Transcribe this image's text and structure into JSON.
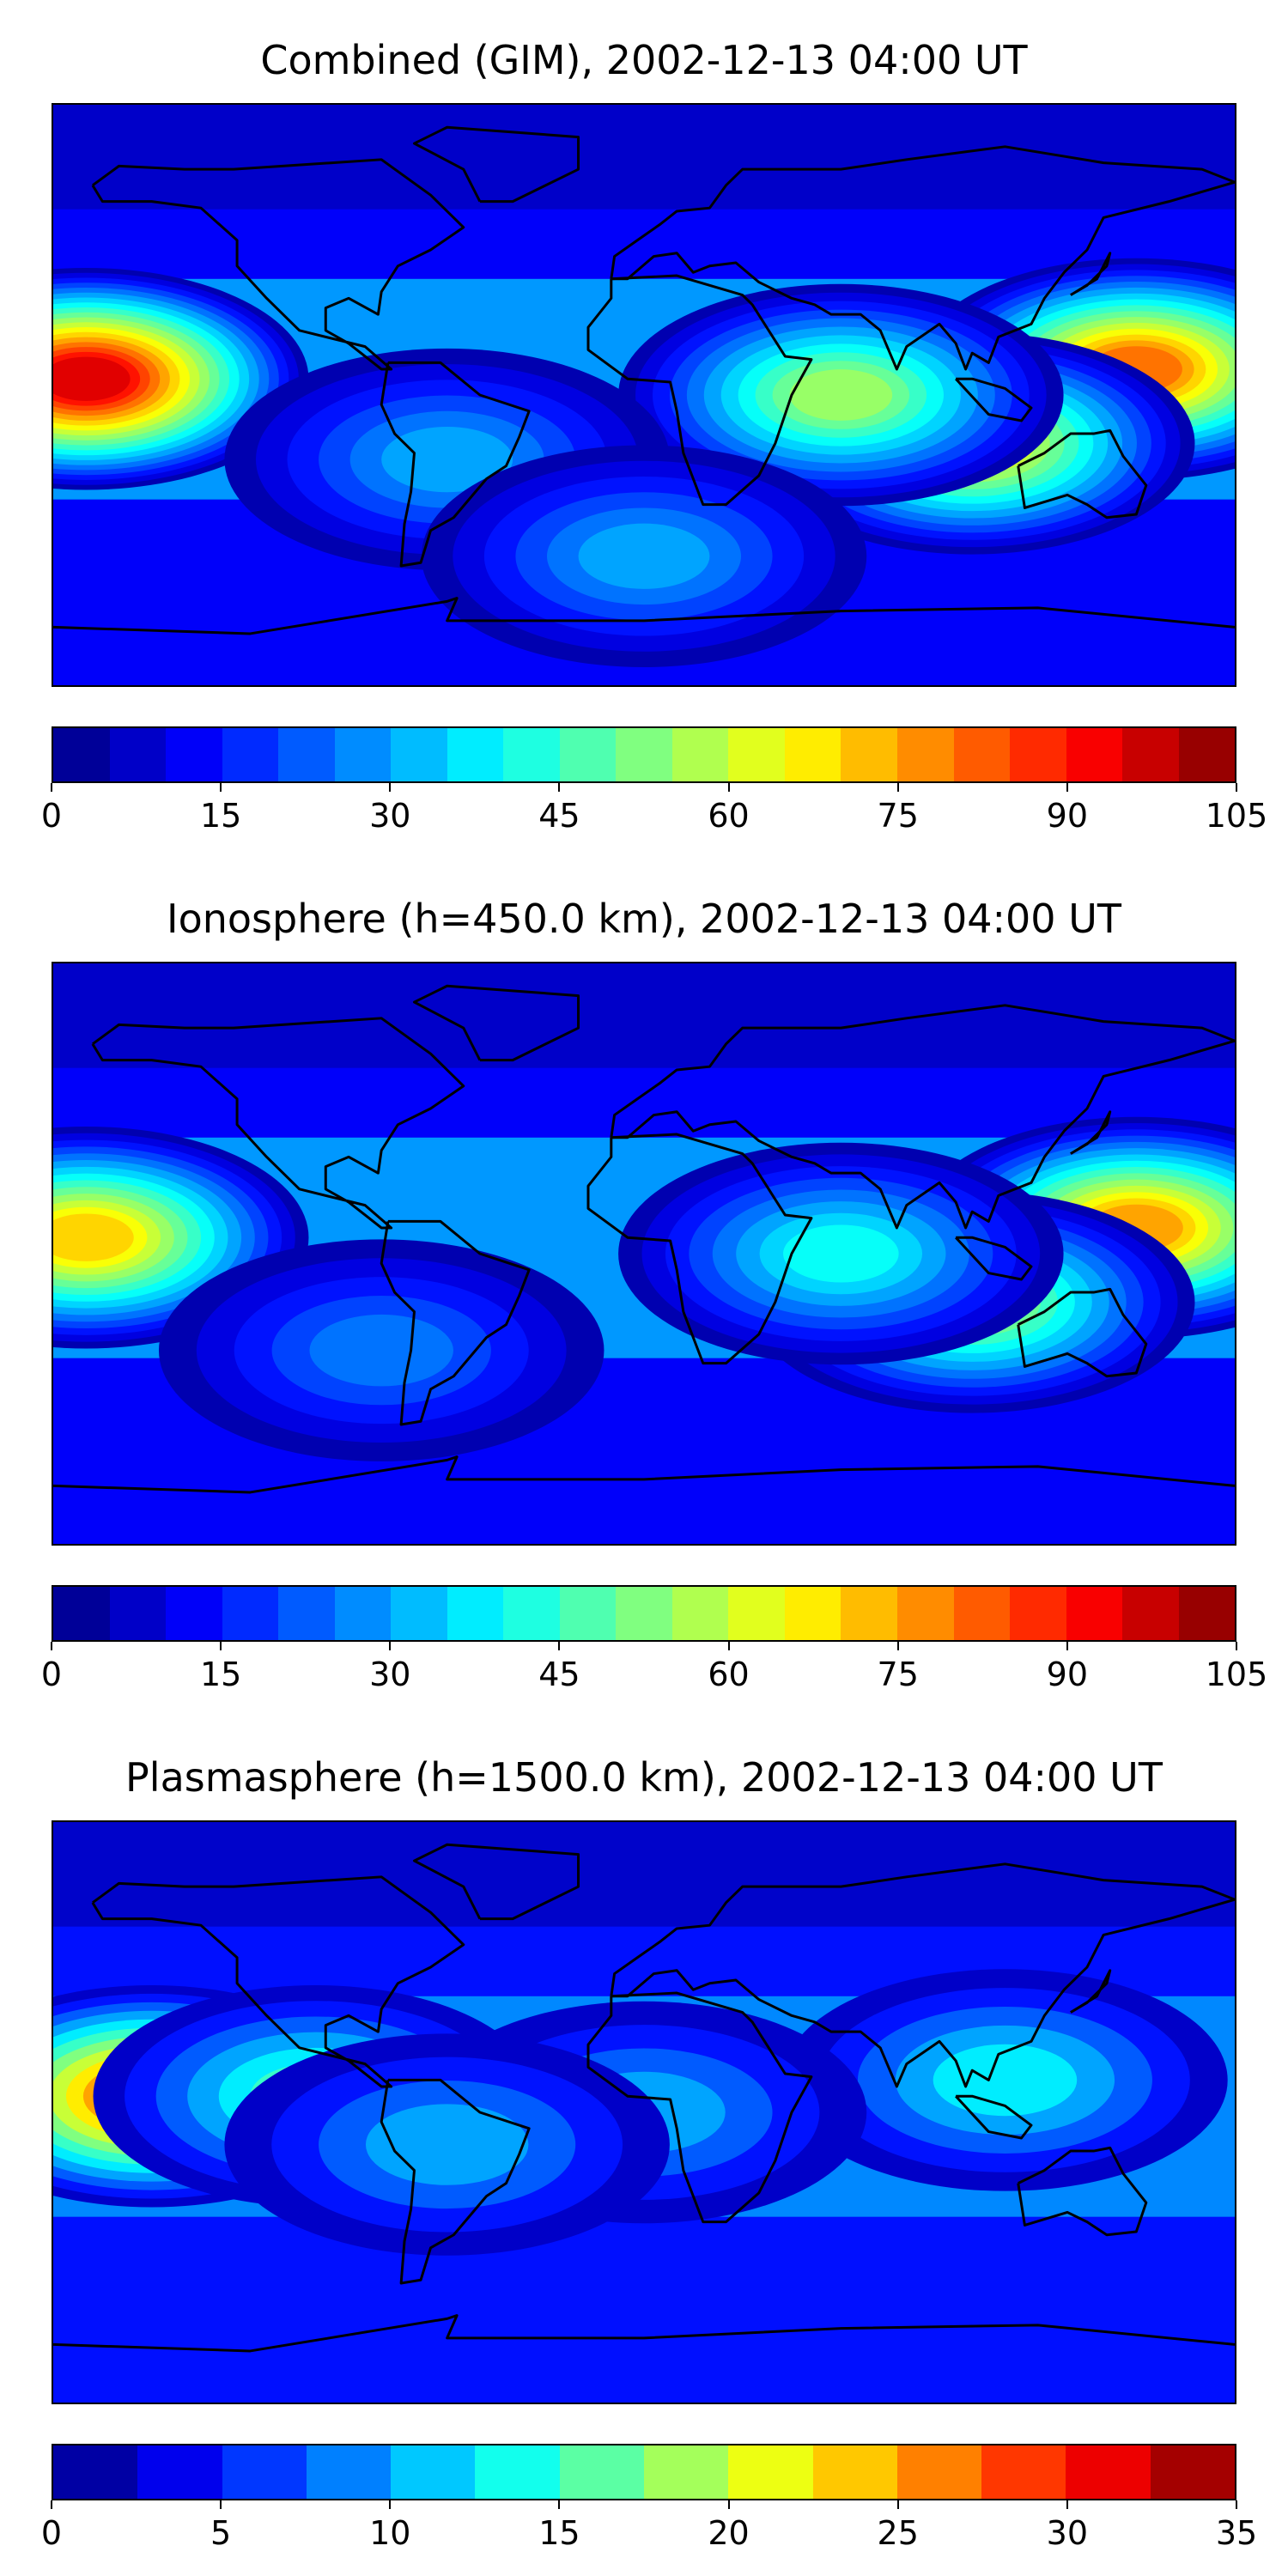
{
  "panels": [
    {
      "title": "Combined (GIM), 2002-12-13 04:00 UT",
      "colorbar": {
        "vmin": 0,
        "vmax": 105,
        "ticks": [
          "0",
          "15",
          "30",
          "45",
          "60",
          "75",
          "90",
          "105"
        ],
        "levels": 21
      },
      "features": [
        {
          "lon": -170,
          "lat": 5,
          "amp": 95
        },
        {
          "lon": 150,
          "lat": 8,
          "amp": 80
        },
        {
          "lon": 100,
          "lat": -15,
          "amp": 65
        },
        {
          "lon": 60,
          "lat": 0,
          "amp": 55
        },
        {
          "lon": -60,
          "lat": -20,
          "amp": 30
        },
        {
          "lon": 0,
          "lat": -50,
          "amp": 28
        }
      ]
    },
    {
      "title": "Ionosphere  (h=450.0 km), 2002-12-13 04:00 UT",
      "colorbar": {
        "vmin": 0,
        "vmax": 105,
        "ticks": [
          "0",
          "15",
          "30",
          "45",
          "60",
          "75",
          "90",
          "105"
        ],
        "levels": 21
      },
      "features": [
        {
          "lon": -170,
          "lat": 5,
          "amp": 70
        },
        {
          "lon": 150,
          "lat": 8,
          "amp": 75
        },
        {
          "lon": 100,
          "lat": -15,
          "amp": 55
        },
        {
          "lon": 60,
          "lat": 0,
          "amp": 40
        },
        {
          "lon": -80,
          "lat": -30,
          "amp": 25
        }
      ]
    },
    {
      "title": "Plasmasphere (h=1500.0 km), 2002-12-13 04:00 UT",
      "colorbar": {
        "vmin": 0,
        "vmax": 35,
        "ticks": [
          "0",
          "5",
          "10",
          "15",
          "20",
          "25",
          "30",
          "35"
        ],
        "levels": 14
      },
      "features": [
        {
          "lon": -150,
          "lat": 5,
          "amp": 28
        },
        {
          "lon": -100,
          "lat": 5,
          "amp": 14
        },
        {
          "lon": 110,
          "lat": 10,
          "amp": 13
        },
        {
          "lon": 0,
          "lat": 0,
          "amp": 11
        },
        {
          "lon": -60,
          "lat": -10,
          "amp": 9
        }
      ]
    }
  ],
  "colormap": "jet"
}
